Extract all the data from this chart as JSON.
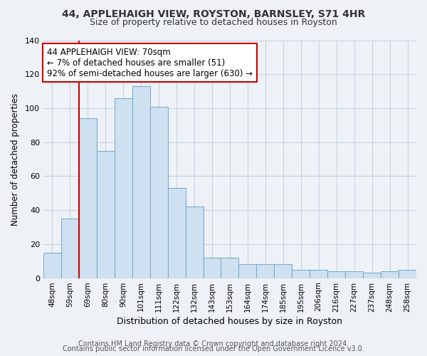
{
  "title": "44, APPLEHAIGH VIEW, ROYSTON, BARNSLEY, S71 4HR",
  "subtitle": "Size of property relative to detached houses in Royston",
  "xlabel": "Distribution of detached houses by size in Royston",
  "ylabel": "Number of detached properties",
  "bar_labels": [
    "48sqm",
    "59sqm",
    "69sqm",
    "80sqm",
    "90sqm",
    "101sqm",
    "111sqm",
    "122sqm",
    "132sqm",
    "143sqm",
    "153sqm",
    "164sqm",
    "174sqm",
    "185sqm",
    "195sqm",
    "206sqm",
    "216sqm",
    "227sqm",
    "237sqm",
    "248sqm",
    "258sqm"
  ],
  "bar_values": [
    15,
    35,
    94,
    75,
    106,
    113,
    101,
    53,
    42,
    12,
    12,
    8,
    8,
    8,
    5,
    5,
    4,
    4,
    3,
    4,
    5
  ],
  "bar_fill_color": "#cfe0f0",
  "bar_edge_color": "#7aadcf",
  "vline_index": 2,
  "vline_color": "#cc0000",
  "annotation_line1": "44 APPLEHAIGH VIEW: 70sqm",
  "annotation_line2": "← 7% of detached houses are smaller (51)",
  "annotation_line3": "92% of semi-detached houses are larger (630) →",
  "annotation_box_color": "#ffffff",
  "annotation_box_edge": "#cc0000",
  "ylim": [
    0,
    140
  ],
  "yticks": [
    0,
    20,
    40,
    60,
    80,
    100,
    120,
    140
  ],
  "footer_line1": "Contains HM Land Registry data © Crown copyright and database right 2024.",
  "footer_line2": "Contains public sector information licensed under the Open Government Licence v3.0.",
  "background_color": "#eef2f7",
  "plot_background": "#eef2f7",
  "grid_color": "#c8d4e0",
  "title_fontsize": 10,
  "subtitle_fontsize": 9
}
